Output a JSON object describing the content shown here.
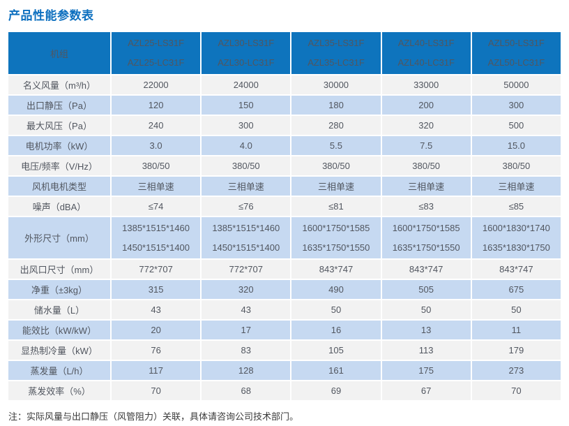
{
  "page": {
    "title": "产品性能参数表",
    "note": "注：实际风量与出口静压（风管阻力）关联，具体请咨询公司技术部门。"
  },
  "table": {
    "corner_label": "机组",
    "models": [
      {
        "line1": "AZL25-LS31F",
        "line2": "AZL25-LC31F"
      },
      {
        "line1": "AZL30-LS31F",
        "line2": "AZL30-LC31F"
      },
      {
        "line1": "AZL35-LS31F",
        "line2": "AZL35-LC31F"
      },
      {
        "line1": "AZL40-LS31F",
        "line2": "AZL40-LC31F"
      },
      {
        "line1": "AZL50-LS31F",
        "line2": "AZL50-LC31F"
      }
    ],
    "rows": [
      {
        "label": "名义风量（m³/h）",
        "values": [
          "22000",
          "24000",
          "30000",
          "33000",
          "50000"
        ]
      },
      {
        "label": "出口静压（Pa）",
        "values": [
          "120",
          "150",
          "180",
          "200",
          "300"
        ]
      },
      {
        "label": "最大风压（Pa）",
        "values": [
          "240",
          "300",
          "280",
          "320",
          "500"
        ]
      },
      {
        "label": "电机功率（kW）",
        "values": [
          "3.0",
          "4.0",
          "5.5",
          "7.5",
          "15.0"
        ]
      },
      {
        "label": "电压/频率（V/Hz）",
        "values": [
          "380/50",
          "380/50",
          "380/50",
          "380/50",
          "380/50"
        ]
      },
      {
        "label": "风机电机类型",
        "values": [
          "三相单速",
          "三相单速",
          "三相单速",
          "三相单速",
          "三相单速"
        ]
      },
      {
        "label": "噪声（dBA）",
        "values": [
          "≤74",
          "≤76",
          "≤81",
          "≤83",
          "≤85"
        ]
      },
      {
        "label": "外形尺寸（mm）",
        "values": [
          [
            "1385*1515*1460",
            "1450*1515*1400"
          ],
          [
            "1385*1515*1460",
            "1450*1515*1400"
          ],
          [
            "1600*1750*1585",
            "1635*1750*1550"
          ],
          [
            "1600*1750*1585",
            "1635*1750*1550"
          ],
          [
            "1600*1830*1740",
            "1635*1830*1750"
          ]
        ]
      },
      {
        "label": "出风口尺寸（mm）",
        "values": [
          "772*707",
          "772*707",
          "843*747",
          "843*747",
          "843*747"
        ]
      },
      {
        "label": "净重（±3kg）",
        "values": [
          "315",
          "320",
          "490",
          "505",
          "675"
        ]
      },
      {
        "label": "储水量（L）",
        "values": [
          "43",
          "43",
          "50",
          "50",
          "50"
        ]
      },
      {
        "label": "能效比（kW/kW）",
        "values": [
          "20",
          "17",
          "16",
          "13",
          "11"
        ]
      },
      {
        "label": "显热制冷量（kW）",
        "values": [
          "76",
          "83",
          "105",
          "113",
          "179"
        ]
      },
      {
        "label": "蒸发量（L/h）",
        "values": [
          "117",
          "128",
          "161",
          "175",
          "273"
        ]
      },
      {
        "label": "蒸发效率（%）",
        "values": [
          "70",
          "68",
          "69",
          "67",
          "70"
        ]
      }
    ]
  }
}
